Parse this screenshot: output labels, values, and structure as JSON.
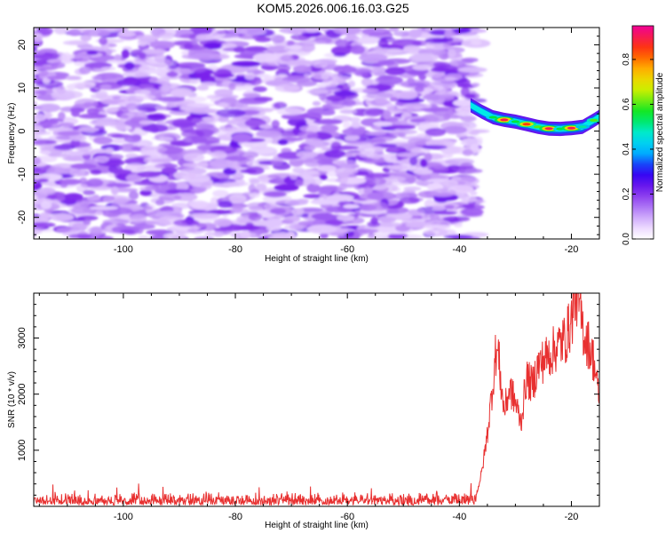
{
  "title": "KOM5.2026.006.16.03.G25",
  "chart_data": [
    {
      "type": "heatmap",
      "name": "spectrogram",
      "xlabel": "Height of straight line (km)",
      "ylabel": "Frequency (Hz)",
      "xlim": [
        -116,
        -15
      ],
      "ylim": [
        -25,
        24
      ],
      "xticks": [
        -100,
        -80,
        -60,
        -40,
        -20
      ],
      "yticks": [
        -20,
        -10,
        0,
        10,
        20
      ],
      "noise_region": {
        "x_from": -116,
        "x_to": -37,
        "amplitude_range": [
          0.0,
          0.22
        ]
      },
      "signal_track": [
        {
          "x": -38,
          "freq": 6.0,
          "amp": 0.25
        },
        {
          "x": -36,
          "freq": 4.5,
          "amp": 0.3
        },
        {
          "x": -34,
          "freq": 3.2,
          "amp": 0.55
        },
        {
          "x": -32,
          "freq": 2.6,
          "amp": 0.9
        },
        {
          "x": -30,
          "freq": 2.2,
          "amp": 0.55
        },
        {
          "x": -28,
          "freq": 1.6,
          "amp": 0.85
        },
        {
          "x": -26,
          "freq": 1.0,
          "amp": 0.6
        },
        {
          "x": -24,
          "freq": 0.6,
          "amp": 0.9
        },
        {
          "x": -22,
          "freq": 0.5,
          "amp": 0.55
        },
        {
          "x": -20,
          "freq": 0.7,
          "amp": 0.9
        },
        {
          "x": -18,
          "freq": 1.0,
          "amp": 0.5
        },
        {
          "x": -16,
          "freq": 2.5,
          "amp": 0.6
        }
      ]
    },
    {
      "type": "colorbar",
      "name": "amplitude-colorbar",
      "label": "Normalized spectral amplitude",
      "range": [
        0.0,
        0.95
      ],
      "ticks": [
        "0.0",
        "0.2",
        "0.4",
        "0.6",
        "0.8"
      ],
      "tick_values": [
        0.0,
        0.2,
        0.4,
        0.6,
        0.8
      ]
    },
    {
      "type": "line",
      "name": "snr-plot",
      "xlabel": "Height of straight line (km)",
      "ylabel": "SNR (10 * v/v)",
      "xlim": [
        -116,
        -15
      ],
      "ylim": [
        0,
        3800
      ],
      "xticks": [
        -100,
        -80,
        -60,
        -40,
        -20
      ],
      "yticks": [
        1000,
        2000,
        3000
      ],
      "color": "#e83030",
      "baseline_region": {
        "x_from": -116,
        "x_to": -37,
        "level_range": [
          20,
          260
        ]
      },
      "series": [
        {
          "name": "SNR envelope",
          "x": [
            -37,
            -36,
            -35,
            -34,
            -33.5,
            -33,
            -32.5,
            -32,
            -31,
            -30,
            -29,
            -28,
            -27,
            -26,
            -25,
            -24,
            -23,
            -22,
            -21,
            -20,
            -19.5,
            -19,
            -18.5,
            -18,
            -17.5,
            -17,
            -16,
            -15.2
          ],
          "y": [
            200,
            600,
            1300,
            2200,
            2750,
            2700,
            2100,
            1700,
            2100,
            1850,
            1500,
            2300,
            2150,
            2500,
            2600,
            2700,
            2800,
            2900,
            3000,
            3300,
            3650,
            3800,
            3500,
            3200,
            3000,
            2900,
            2600,
            2000
          ]
        }
      ]
    }
  ]
}
